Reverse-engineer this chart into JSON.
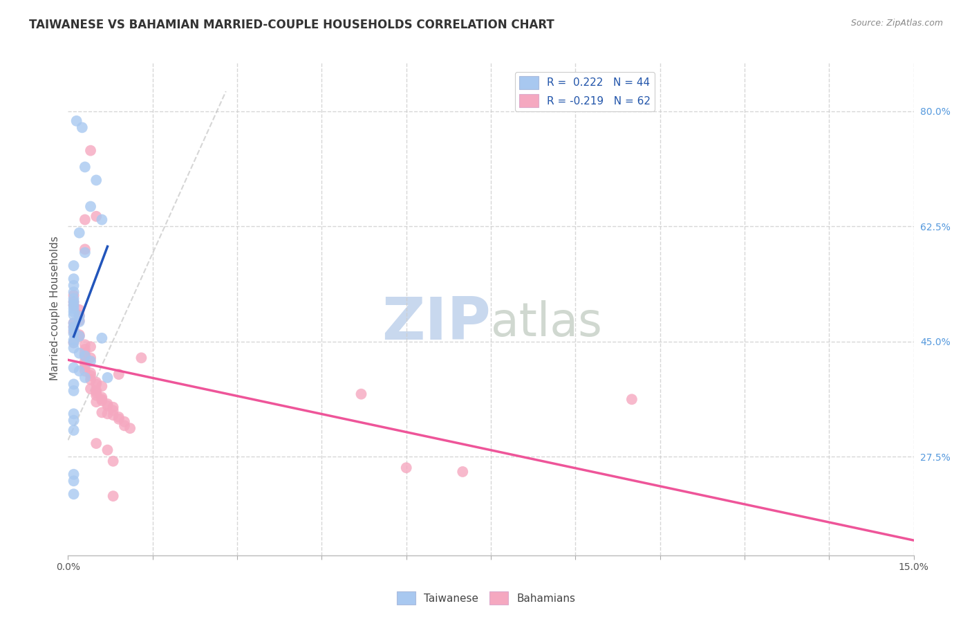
{
  "title": "TAIWANESE VS BAHAMIAN MARRIED-COUPLE HOUSEHOLDS CORRELATION CHART",
  "source": "Source: ZipAtlas.com",
  "ylabel": "Married-couple Households",
  "xmin": 0.0,
  "xmax": 0.15,
  "ymin": 0.125,
  "ymax": 0.875,
  "xticks": [
    0.0,
    0.015,
    0.03,
    0.045,
    0.06,
    0.075,
    0.09,
    0.105,
    0.12,
    0.135,
    0.15
  ],
  "xtick_labels_show": [
    "0.0%",
    "",
    "",
    "",
    "",
    "",
    "",
    "",
    "",
    "",
    "15.0%"
  ],
  "ytick_right_vals": [
    0.275,
    0.45,
    0.625,
    0.8
  ],
  "ytick_right_labels": [
    "27.5%",
    "45.0%",
    "62.5%",
    "80.0%"
  ],
  "legend_r1": "R =  0.222   N = 44",
  "legend_r2": "R = -0.219   N = 62",
  "blue_color": "#A8C8F0",
  "pink_color": "#F5A8C0",
  "blue_line_color": "#2255BB",
  "pink_line_color": "#EE5599",
  "blue_scatter": [
    [
      0.0015,
      0.785
    ],
    [
      0.0025,
      0.775
    ],
    [
      0.003,
      0.715
    ],
    [
      0.005,
      0.695
    ],
    [
      0.004,
      0.655
    ],
    [
      0.006,
      0.635
    ],
    [
      0.002,
      0.615
    ],
    [
      0.003,
      0.585
    ],
    [
      0.001,
      0.565
    ],
    [
      0.001,
      0.545
    ],
    [
      0.001,
      0.535
    ],
    [
      0.001,
      0.525
    ],
    [
      0.001,
      0.515
    ],
    [
      0.001,
      0.51
    ],
    [
      0.001,
      0.505
    ],
    [
      0.001,
      0.5
    ],
    [
      0.001,
      0.495
    ],
    [
      0.001,
      0.49
    ],
    [
      0.002,
      0.488
    ],
    [
      0.002,
      0.48
    ],
    [
      0.001,
      0.478
    ],
    [
      0.001,
      0.472
    ],
    [
      0.001,
      0.468
    ],
    [
      0.001,
      0.462
    ],
    [
      0.002,
      0.458
    ],
    [
      0.001,
      0.452
    ],
    [
      0.001,
      0.448
    ],
    [
      0.001,
      0.44
    ],
    [
      0.002,
      0.432
    ],
    [
      0.003,
      0.428
    ],
    [
      0.004,
      0.42
    ],
    [
      0.001,
      0.41
    ],
    [
      0.002,
      0.405
    ],
    [
      0.003,
      0.395
    ],
    [
      0.001,
      0.385
    ],
    [
      0.001,
      0.375
    ],
    [
      0.006,
      0.455
    ],
    [
      0.001,
      0.34
    ],
    [
      0.001,
      0.33
    ],
    [
      0.001,
      0.315
    ],
    [
      0.001,
      0.248
    ],
    [
      0.001,
      0.238
    ],
    [
      0.007,
      0.395
    ],
    [
      0.001,
      0.218
    ]
  ],
  "pink_scatter": [
    [
      0.004,
      0.74
    ],
    [
      0.003,
      0.635
    ],
    [
      0.003,
      0.59
    ],
    [
      0.005,
      0.64
    ],
    [
      0.001,
      0.52
    ],
    [
      0.001,
      0.51
    ],
    [
      0.001,
      0.505
    ],
    [
      0.002,
      0.498
    ],
    [
      0.002,
      0.49
    ],
    [
      0.002,
      0.482
    ],
    [
      0.001,
      0.478
    ],
    [
      0.001,
      0.472
    ],
    [
      0.001,
      0.465
    ],
    [
      0.002,
      0.46
    ],
    [
      0.002,
      0.458
    ],
    [
      0.001,
      0.448
    ],
    [
      0.003,
      0.445
    ],
    [
      0.004,
      0.442
    ],
    [
      0.003,
      0.438
    ],
    [
      0.003,
      0.432
    ],
    [
      0.003,
      0.428
    ],
    [
      0.004,
      0.425
    ],
    [
      0.003,
      0.42
    ],
    [
      0.003,
      0.415
    ],
    [
      0.003,
      0.41
    ],
    [
      0.003,
      0.405
    ],
    [
      0.004,
      0.402
    ],
    [
      0.004,
      0.398
    ],
    [
      0.004,
      0.392
    ],
    [
      0.005,
      0.388
    ],
    [
      0.005,
      0.385
    ],
    [
      0.006,
      0.382
    ],
    [
      0.004,
      0.378
    ],
    [
      0.005,
      0.375
    ],
    [
      0.005,
      0.372
    ],
    [
      0.005,
      0.368
    ],
    [
      0.006,
      0.365
    ],
    [
      0.006,
      0.362
    ],
    [
      0.006,
      0.36
    ],
    [
      0.005,
      0.358
    ],
    [
      0.007,
      0.355
    ],
    [
      0.007,
      0.352
    ],
    [
      0.008,
      0.35
    ],
    [
      0.008,
      0.345
    ],
    [
      0.006,
      0.342
    ],
    [
      0.007,
      0.34
    ],
    [
      0.008,
      0.338
    ],
    [
      0.009,
      0.335
    ],
    [
      0.009,
      0.332
    ],
    [
      0.01,
      0.328
    ],
    [
      0.01,
      0.322
    ],
    [
      0.011,
      0.318
    ],
    [
      0.005,
      0.295
    ],
    [
      0.007,
      0.285
    ],
    [
      0.008,
      0.268
    ],
    [
      0.009,
      0.4
    ],
    [
      0.052,
      0.37
    ],
    [
      0.06,
      0.258
    ],
    [
      0.07,
      0.252
    ],
    [
      0.1,
      0.362
    ],
    [
      0.013,
      0.425
    ],
    [
      0.008,
      0.215
    ]
  ],
  "diag_line_color": "#BBBBBB",
  "watermark_zip": "ZIP",
  "watermark_atlas": "atlas",
  "watermark_color_zip": "#C8D8EE",
  "watermark_color_atlas": "#D0D8D0",
  "background_color": "#FFFFFF",
  "grid_color": "#CCCCCC",
  "grid_style": "--"
}
